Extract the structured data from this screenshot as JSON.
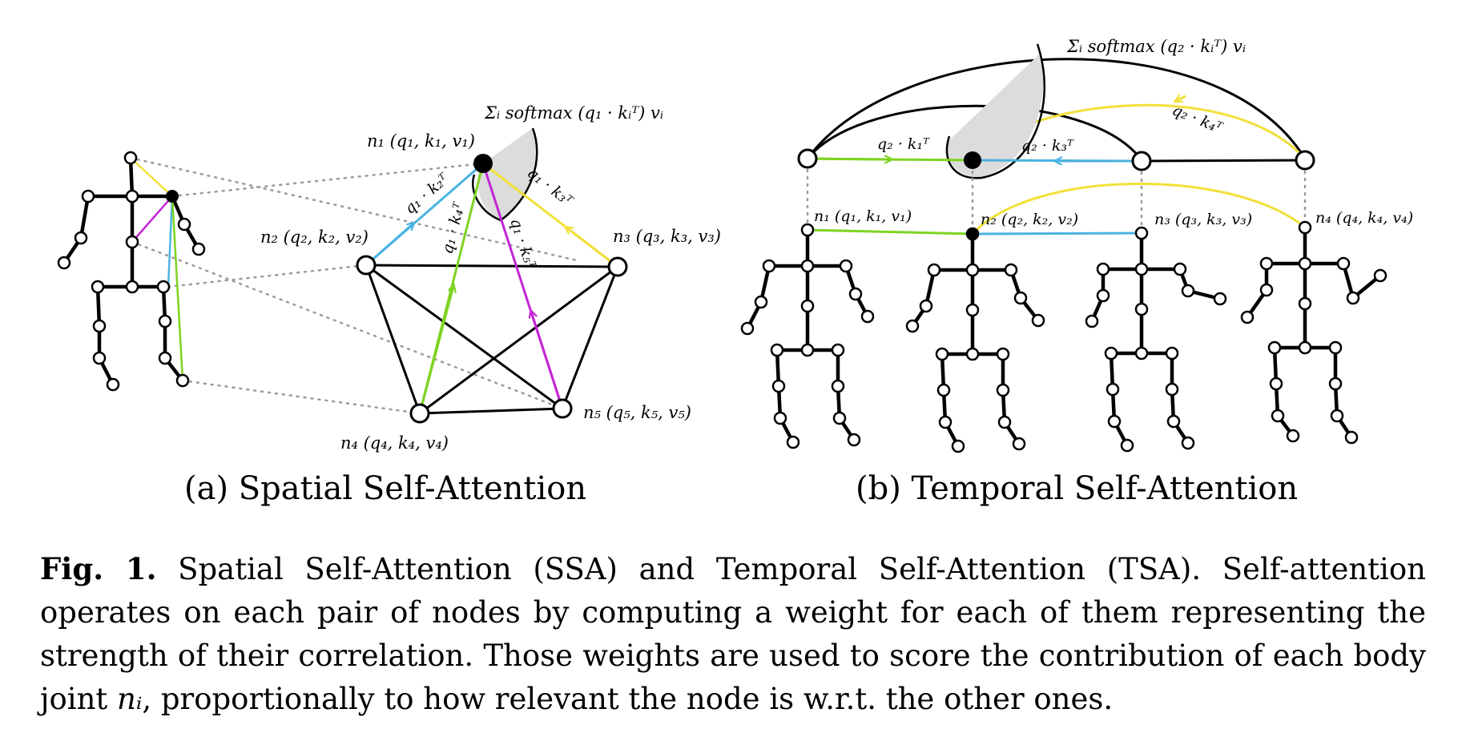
{
  "panel_a": {
    "subcaption": "(a) Spatial Self-Attention",
    "node_labels": [
      "n₁ (q₁, k₁, v₁)",
      "n₂ (q₂, k₂, v₂)",
      "n₃ (q₃, k₃, v₃)",
      "n₄ (q₄, k₄, v₄)",
      "n₅ (q₅, k₅, v₅)"
    ],
    "sum_label": "Σᵢ softmax (q₁ · kᵢᵀ) vᵢ",
    "edge_labels": [
      "q₁ · k₂ᵀ",
      "q₁ · k₃ᵀ",
      "q₁ · k₄ᵀ",
      "q₁ · k₅ᵀ"
    ]
  },
  "panel_b": {
    "subcaption": "(b) Temporal Self-Attention",
    "node_labels": [
      "n₁ (q₁, k₁, v₁)",
      "n₂ (q₂, k₂, v₂)",
      "n₃ (q₃, k₃, v₃)",
      "n₄ (q₄, k₄, v₄)"
    ],
    "sum_label": "Σᵢ softmax (q₂ · kᵢᵀ) vᵢ",
    "edge_labels": [
      "q₂ · k₁ᵀ",
      "q₂ · k₃ᵀ",
      "q₂ · k₄ᵀ"
    ]
  },
  "caption": {
    "label": "Fig. 1.",
    "text_1": " Spatial Self-Attention (SSA) and Temporal Self-Attention (TSA). Self-attention operates on each pair of nodes by computing a weight for each of them representing the strength of their correlation. Those weights are used to score the contribution of each body joint ",
    "math": "nᵢ",
    "text_2": ", proportionally to how relevant the node is w.r.t. the other ones."
  },
  "colors": {
    "green": "#7ed321",
    "blue": "#4ab3e0",
    "yellow": "#f2e03a",
    "magenta": "#c425d6",
    "dotted": "#9a9a9a",
    "shade": "#dcdcdc"
  }
}
